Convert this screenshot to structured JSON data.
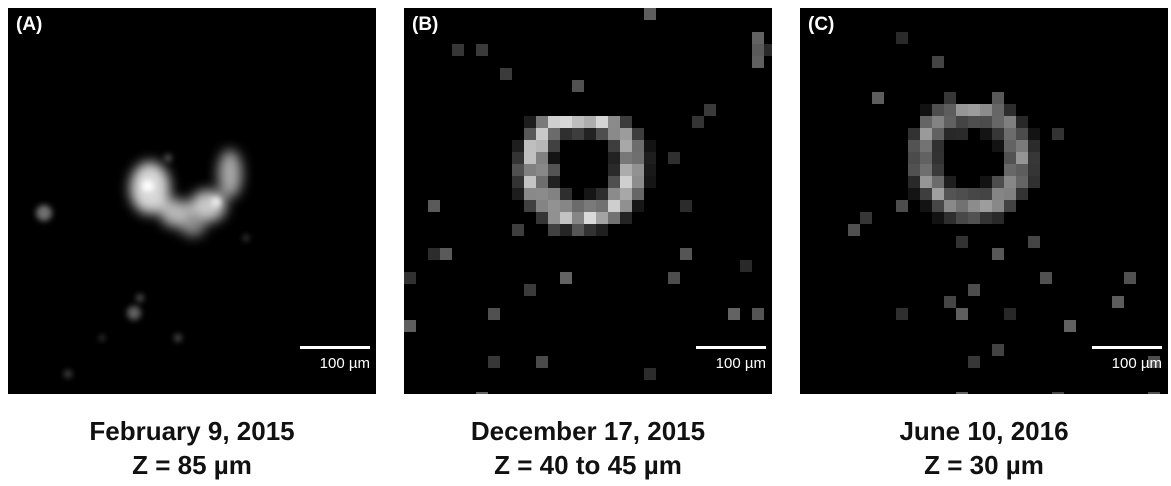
{
  "panels": [
    {
      "label": "(A)",
      "scale_bar_label": "100 µm",
      "date": "February 9, 2015",
      "depth": "Z = 85 µm"
    },
    {
      "label": "(B)",
      "scale_bar_label": "100 µm",
      "date": "December 17, 2015",
      "depth": "Z = 40 to 45 µm"
    },
    {
      "label": "(C)",
      "scale_bar_label": "100 µm",
      "date": "June 10, 2016",
      "depth": "Z = 30 µm"
    }
  ],
  "colors": {
    "background": "#000000",
    "signal": "#ffffff",
    "caption_text": "#111111"
  }
}
